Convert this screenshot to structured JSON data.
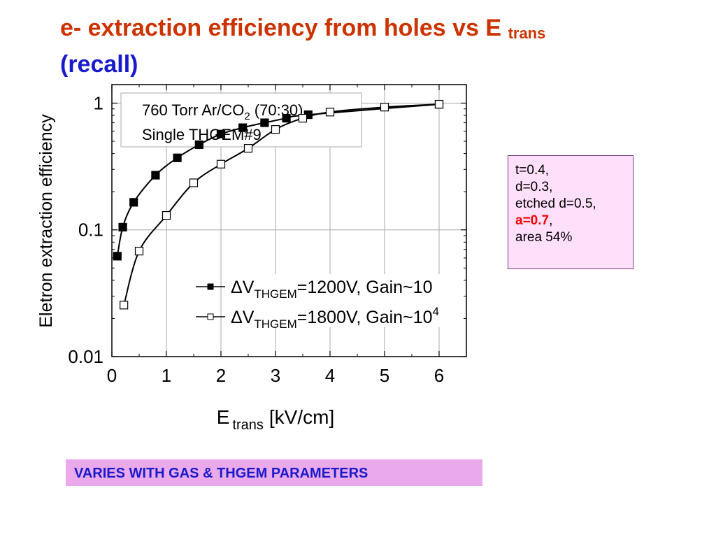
{
  "slide": {
    "title_main": "e- extraction efficiency from holes vs E",
    "title_sub": "trans",
    "title_line2": "(recall)",
    "param_box": {
      "lines": [
        "t=0.4,",
        "d=0.3,",
        "etched d=0.5,"
      ],
      "highlight": "a=0.7",
      "highlight_suffix": ",",
      "last": "area 54%"
    },
    "note": "VARIES WITH GAS & THGEM PARAMETERS",
    "colors": {
      "title": "#cc3300",
      "title_line2": "#1a1acc",
      "note_text": "#1a1acc",
      "note_bg": "#e9a9ea",
      "param_bg": "#ffe0fa",
      "highlight": "#ff0000"
    }
  },
  "chart_data": {
    "type": "scatter",
    "y_scale": "log",
    "xlim": [
      0,
      6.5
    ],
    "ylim": [
      0.01,
      1.4
    ],
    "x_ticks": [
      "0",
      "1",
      "2",
      "3",
      "4",
      "5",
      "6"
    ],
    "y_ticks": [
      "0.01",
      "0.1",
      "1"
    ],
    "grid": true,
    "ylabel": "Eletron extraction efficiency",
    "xlabel_main": "E",
    "xlabel_sub": "trans",
    "xlabel_unit": "[kV/cm]",
    "info_line1_pre": "760 Torr  Ar/CO",
    "info_line1_sub": "2",
    "info_line1_post": " (70:30)",
    "info_line2": "Single THGEM#9",
    "series": [
      {
        "marker": "filled-square",
        "legend_pre": "ΔV",
        "legend_sub": "THGEM",
        "legend_post": "=1200V, Gain~10",
        "legend_sup": "",
        "points": [
          [
            0.1,
            0.062
          ],
          [
            0.2,
            0.105
          ],
          [
            0.4,
            0.165
          ],
          [
            0.8,
            0.27
          ],
          [
            1.2,
            0.37
          ],
          [
            1.6,
            0.47
          ],
          [
            2.0,
            0.57
          ],
          [
            2.4,
            0.64
          ],
          [
            2.8,
            0.7
          ],
          [
            3.2,
            0.76
          ],
          [
            3.6,
            0.81
          ],
          [
            6.0,
            0.98
          ]
        ]
      },
      {
        "marker": "open-square",
        "legend_pre": "ΔV",
        "legend_sub": "THGEM",
        "legend_post": "=1800V, Gain~10",
        "legend_sup": "4",
        "points": [
          [
            0.22,
            0.0255
          ],
          [
            0.5,
            0.068
          ],
          [
            1.0,
            0.13
          ],
          [
            1.5,
            0.235
          ],
          [
            2.0,
            0.33
          ],
          [
            2.5,
            0.44
          ],
          [
            3.0,
            0.62
          ],
          [
            3.5,
            0.76
          ],
          [
            4.0,
            0.85
          ],
          [
            5.0,
            0.93
          ],
          [
            6.0,
            0.98
          ]
        ]
      }
    ]
  }
}
